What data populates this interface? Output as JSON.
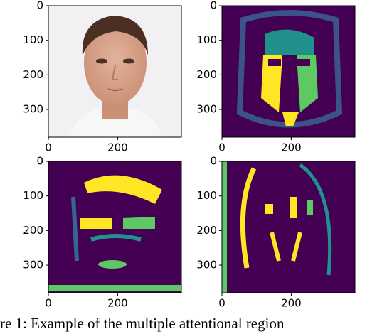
{
  "chart_data": [
    {
      "type": "image",
      "xlim": [
        0,
        384
      ],
      "ylim": [
        0,
        380
      ],
      "xticks": [
        0,
        200
      ],
      "yticks": [
        0,
        100,
        200,
        300
      ]
    },
    {
      "type": "image",
      "xlim": [
        0,
        384
      ],
      "ylim": [
        0,
        380
      ],
      "xticks": [
        0,
        200
      ],
      "yticks": [
        0,
        100,
        200,
        300
      ]
    },
    {
      "type": "image",
      "xlim": [
        0,
        384
      ],
      "ylim": [
        0,
        380
      ],
      "xticks": [
        0,
        200
      ],
      "yticks": [
        0,
        100,
        200,
        300
      ]
    },
    {
      "type": "image",
      "xlim": [
        0,
        384
      ],
      "ylim": [
        0,
        380
      ],
      "xticks": [
        0,
        200
      ],
      "yticks": [
        0,
        100,
        200,
        300
      ]
    }
  ],
  "caption": "re 1: Example of the multiple attentional region"
}
